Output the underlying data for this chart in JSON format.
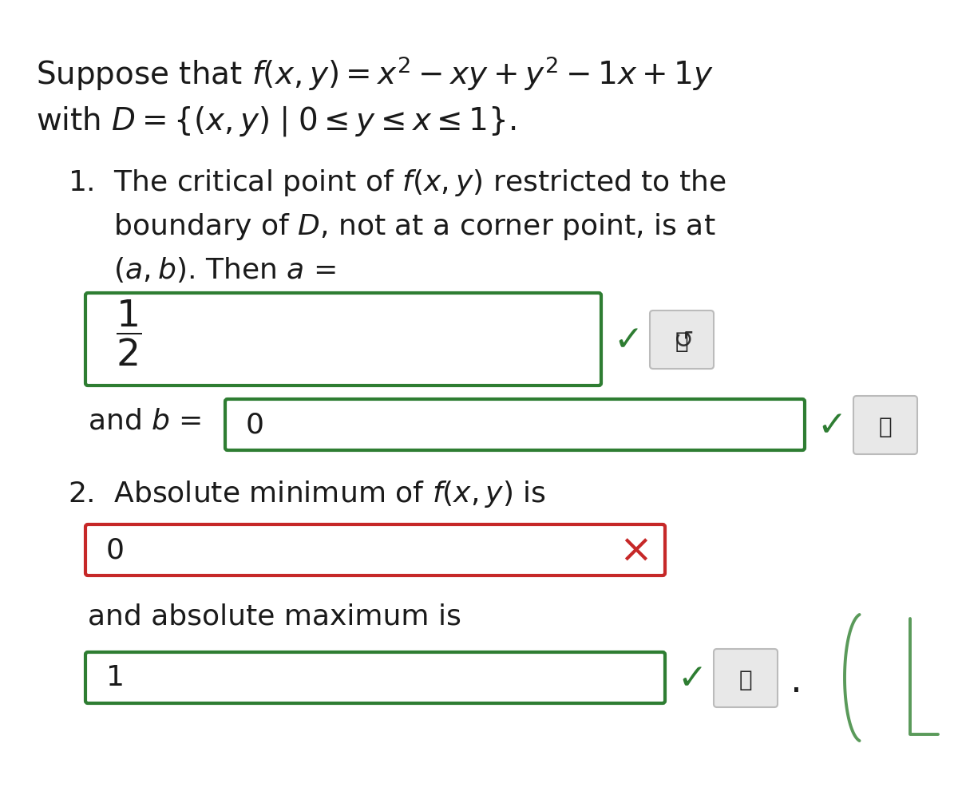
{
  "bg_color": "#ffffff",
  "text_color": "#1a1a1a",
  "check_color": "#2e7d32",
  "cross_color": "#c62828",
  "box1_color": "#2e7d32",
  "box2_color": "#2e7d32",
  "box3_color": "#c62828",
  "box4_color": "#2e7d32",
  "icon_bg": "#e8e8e8",
  "icon_border": "#aaaaaa",
  "squiggle_color": "#5a9a5a",
  "font_size_header": 28,
  "font_size_body": 26,
  "font_size_box": 26,
  "font_size_check": 28,
  "font_size_cross": 32
}
